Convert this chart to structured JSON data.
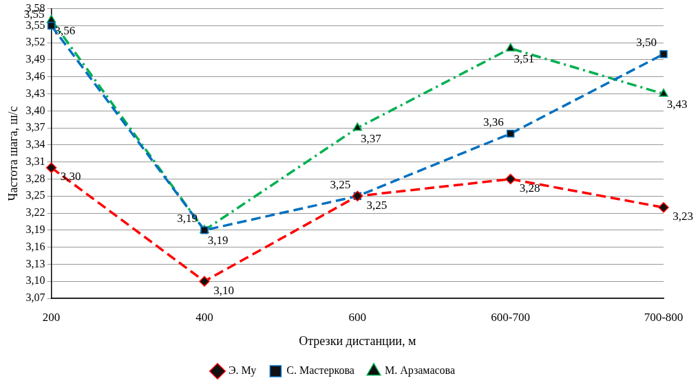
{
  "chart_data": {
    "type": "line",
    "xlabel": "Отрезки дистанции, м",
    "ylabel": "Частота шага, ш/с",
    "categories": [
      "200",
      "400",
      "600",
      "600-700",
      "700-800"
    ],
    "ylim": [
      3.07,
      3.58
    ],
    "yticks": [
      {
        "value": 3.07,
        "label": "3,07"
      },
      {
        "value": 3.1,
        "label": "3,10"
      },
      {
        "value": 3.13,
        "label": "3,13"
      },
      {
        "value": 3.16,
        "label": "3,16"
      },
      {
        "value": 3.19,
        "label": "3,19"
      },
      {
        "value": 3.22,
        "label": "3,22"
      },
      {
        "value": 3.25,
        "label": "3,25"
      },
      {
        "value": 3.28,
        "label": "3,28"
      },
      {
        "value": 3.31,
        "label": "3,31"
      },
      {
        "value": 3.34,
        "label": "3,34"
      },
      {
        "value": 3.37,
        "label": "3,37"
      },
      {
        "value": 3.4,
        "label": "3,40"
      },
      {
        "value": 3.43,
        "label": "3,43"
      },
      {
        "value": 3.46,
        "label": "3,46"
      },
      {
        "value": 3.49,
        "label": "3,49"
      },
      {
        "value": 3.52,
        "label": "3,52"
      },
      {
        "value": 3.55,
        "label": "3,55"
      },
      {
        "value": 3.58,
        "label": "3,58"
      }
    ],
    "grid": "y",
    "legend": "bottom",
    "series": [
      {
        "name": "Э. Му",
        "color": "#ff0000",
        "marker": "diamond",
        "line_style": "dashed",
        "values": [
          3.3,
          3.1,
          3.25,
          3.28,
          3.23
        ],
        "value_labels": [
          "3,30",
          "3,10",
          "3,25",
          "3,28",
          "3,23"
        ]
      },
      {
        "name": "С. Мастеркова",
        "color": "#0070c0",
        "marker": "square",
        "line_style": "dashed",
        "values": [
          3.55,
          3.19,
          3.25,
          3.36,
          3.5
        ],
        "value_labels": [
          "3,55",
          "3,19",
          "3,25",
          "3,36",
          "3,50"
        ]
      },
      {
        "name": "М. Арзамасова",
        "color": "#00b050",
        "marker": "triangle",
        "line_style": "dotted",
        "values": [
          3.56,
          3.19,
          3.37,
          3.51,
          3.43
        ],
        "value_labels": [
          "3,56",
          "3,19",
          "3,37",
          "3,51",
          "3,43"
        ]
      }
    ]
  }
}
